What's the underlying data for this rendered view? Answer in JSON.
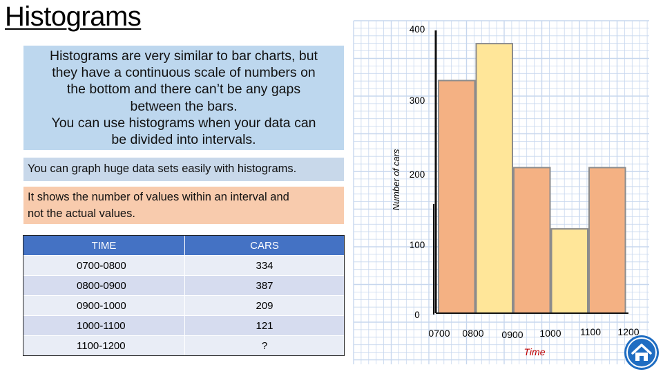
{
  "title": "Histograms",
  "intro_lines": [
    "Histograms are very similar to bar charts, but",
    "they have a continuous scale of numbers on",
    "the bottom and there can’t be any gaps",
    "between the bars.",
    "You can use histograms when your data can",
    "be divided into intervals."
  ],
  "note1": "You can graph huge data sets easily with histograms.",
  "note2_lines": [
    "It shows the number of values within an interval and",
    "not the actual values."
  ],
  "table": {
    "headers": [
      "TIME",
      "CARS"
    ],
    "rows": [
      [
        "0700-0800",
        "334"
      ],
      [
        "0800-0900",
        "387"
      ],
      [
        "0900-1000",
        "209"
      ],
      [
        "1000-1100",
        "121"
      ],
      [
        "1100-1200",
        "?"
      ]
    ]
  },
  "colors": {
    "grid": "#c7d7ee",
    "bar_orange": "#f4b183",
    "bar_yellow": "#ffe699",
    "ylabel": "#000000",
    "xlabel": "#c00000",
    "home_button": "#1f6dc2"
  },
  "home_icon": "home-icon",
  "chart_data": {
    "type": "bar",
    "title": "",
    "ylabel": "Number of cars",
    "xlabel": "Time",
    "ylim": [
      0,
      400
    ],
    "yticks": [
      "0",
      "100",
      "200",
      "300",
      "400"
    ],
    "ytick_values": [
      0,
      100,
      200,
      300,
      400
    ],
    "xtick_labels": [
      "0700",
      "0800",
      "0900",
      "1000",
      "1100",
      "1200"
    ],
    "intervals": [
      "0700-0800",
      "0800-0900",
      "0900-1000",
      "1000-1100",
      "1100-1200"
    ],
    "values": [
      334,
      387,
      209,
      121,
      209
    ],
    "bar_colors": [
      "#f4b183",
      "#ffe699",
      "#f4b183",
      "#ffe699",
      "#f4b183"
    ],
    "grid": true
  }
}
